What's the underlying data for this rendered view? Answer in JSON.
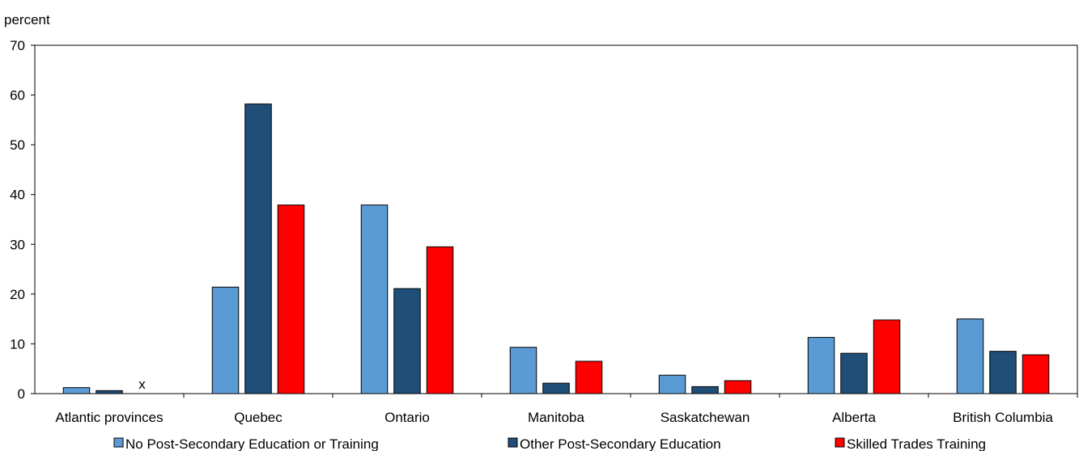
{
  "chart_data": {
    "type": "bar",
    "title": "",
    "xlabel": "",
    "ylabel": "percent",
    "ylim": [
      0,
      70
    ],
    "yticks": [
      0,
      10,
      20,
      30,
      40,
      50,
      60,
      70
    ],
    "grid": false,
    "legend_position": "bottom",
    "categories": [
      "Atlantic provinces",
      "Quebec",
      "Ontario",
      "Manitoba",
      "Saskatchewan",
      "Alberta",
      "British Columbia"
    ],
    "series": [
      {
        "name": "No Post-Secondary Education or Training",
        "color": "#5B9BD5",
        "values": [
          1.2,
          21.4,
          37.9,
          9.3,
          3.7,
          11.3,
          15.0
        ]
      },
      {
        "name": "Other Post-Secondary Education",
        "color": "#1F4E79",
        "values": [
          0.6,
          58.2,
          21.1,
          2.1,
          1.4,
          8.1,
          8.5
        ]
      },
      {
        "name": "Skilled Trades Training",
        "color": "#FF0000",
        "values": [
          null,
          37.9,
          29.5,
          6.5,
          2.6,
          14.8,
          7.8
        ]
      }
    ],
    "annotations": [
      {
        "category": "Atlantic provinces",
        "series": "Skilled Trades Training",
        "text": "x"
      }
    ]
  }
}
